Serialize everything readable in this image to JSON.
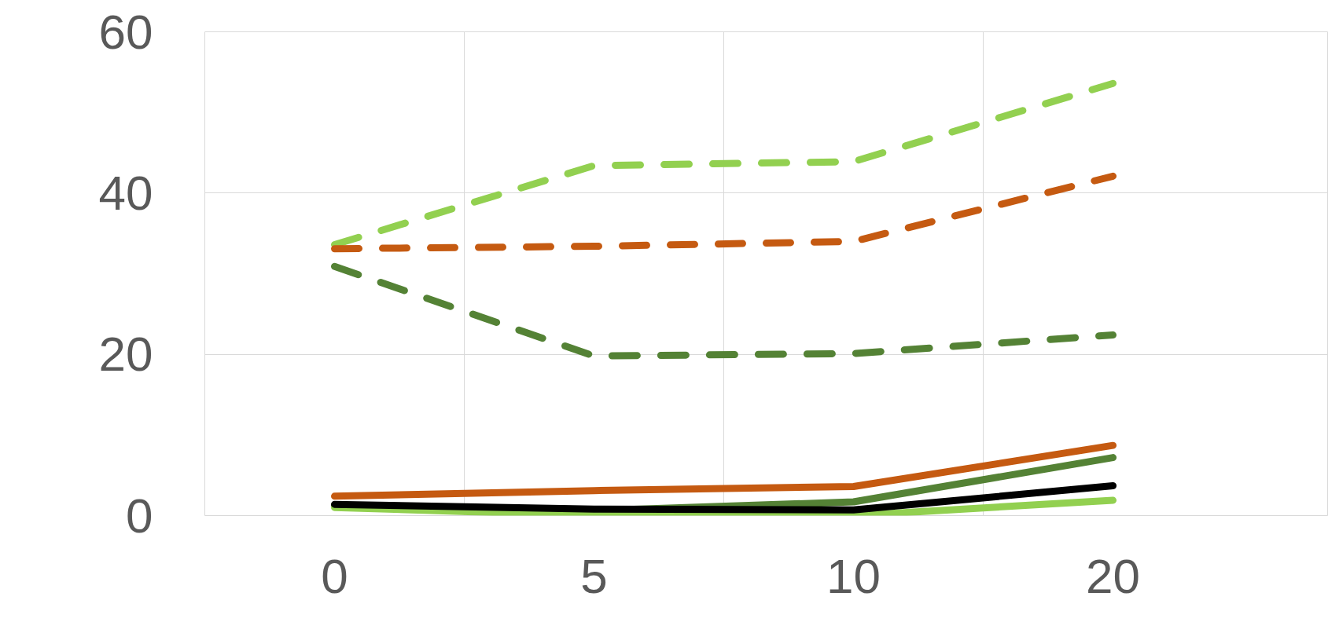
{
  "chart_data": {
    "type": "line",
    "categories": [
      "0",
      "5",
      "10",
      "20"
    ],
    "ylim": [
      0,
      60
    ],
    "yticks": [
      0,
      20,
      40,
      60
    ],
    "grid": true,
    "marker": "none",
    "series": [
      {
        "color": "#92d050",
        "line_style": "dashed",
        "values": [
          33.6,
          43.4,
          43.9,
          53.6
        ]
      },
      {
        "color": "#c55a11",
        "line_style": "dashed",
        "values": [
          33.1,
          33.4,
          34.0,
          42.1
        ]
      },
      {
        "color": "#548235",
        "line_style": "dashed",
        "values": [
          30.9,
          19.8,
          20.1,
          22.4
        ]
      },
      {
        "color": "#c55a11",
        "line_style": "solid",
        "values": [
          2.4,
          3.1,
          3.6,
          8.7
        ]
      },
      {
        "color": "#548235",
        "line_style": "solid",
        "values": [
          1.3,
          0.6,
          1.7,
          7.2
        ]
      },
      {
        "color": "#92d050",
        "line_style": "solid",
        "values": [
          1.0,
          0,
          0,
          1.9
        ]
      },
      {
        "color": "#000000",
        "line_style": "solid",
        "values": [
          1.4,
          0.8,
          0.7,
          3.7
        ]
      }
    ]
  }
}
